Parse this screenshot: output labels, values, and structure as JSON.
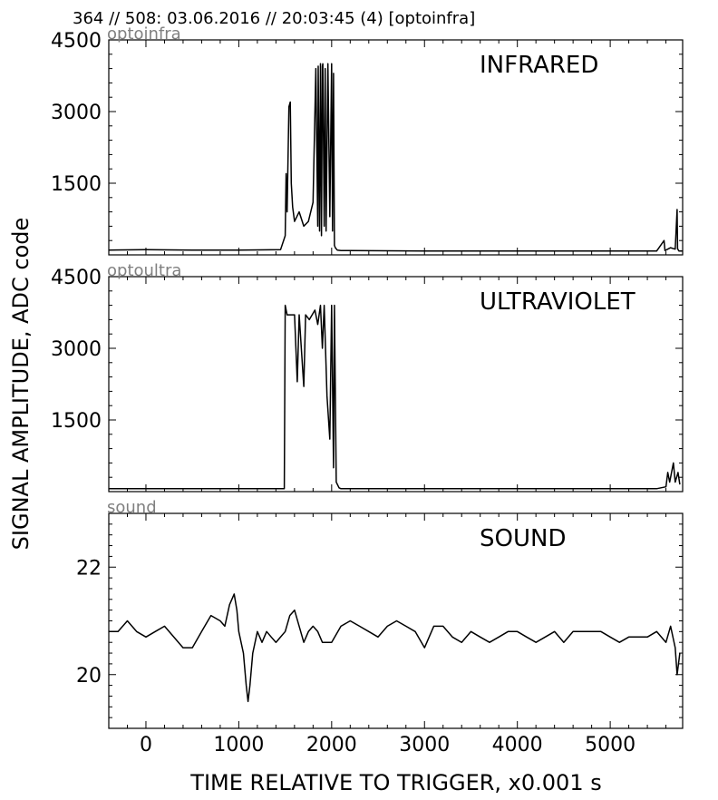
{
  "header": {
    "title": "364 // 508:   03.06.2016 // 20:03:45 (4)  [optoinfra]"
  },
  "figure": {
    "ylabel": "SIGNAL AMPLITUDE,  ADC code",
    "xlabel": "TIME RELATIVE TO TRIGGER,   x0.001 s",
    "x_ticks": [
      "0",
      "1000",
      "2000",
      "3000",
      "4000",
      "5000"
    ]
  },
  "chart_data": [
    {
      "type": "line",
      "title": "INFRARED",
      "subtitle": "optoinfra",
      "xlim": [
        -400,
        5780
      ],
      "ylim": [
        0,
        4500
      ],
      "y_ticks": [
        "1500",
        "3000",
        "4500"
      ],
      "series": [
        {
          "x": [
            -400,
            0,
            500,
            1000,
            1450,
            1500,
            1510,
            1520,
            1540,
            1555,
            1565,
            1580,
            1600,
            1650,
            1700,
            1750,
            1800,
            1830,
            1850,
            1855,
            1870,
            1880,
            1890,
            1900,
            1905,
            1920,
            1930,
            1940,
            1960,
            1980,
            2000,
            2010,
            2020,
            2030,
            2040,
            2060,
            2100,
            2200,
            3000,
            4000,
            5000,
            5500,
            5580,
            5590,
            5600,
            5650,
            5700,
            5720,
            5725,
            5740,
            5780
          ],
          "y": [
            100,
            110,
            100,
            100,
            110,
            400,
            1700,
            900,
            3100,
            3200,
            1500,
            1000,
            700,
            900,
            600,
            700,
            1100,
            3900,
            600,
            3950,
            500,
            4000,
            400,
            3950,
            4000,
            600,
            3900,
            500,
            4000,
            800,
            4000,
            500,
            3800,
            200,
            150,
            100,
            90,
            90,
            80,
            80,
            80,
            80,
            300,
            90,
            100,
            150,
            120,
            950,
            130,
            80,
            80
          ]
        }
      ]
    },
    {
      "type": "line",
      "title": "ULTRAVIOLET",
      "subtitle": "optoultra",
      "xlim": [
        -400,
        5780
      ],
      "ylim": [
        0,
        4500
      ],
      "y_ticks": [
        "1500",
        "3000",
        "4500"
      ],
      "series": [
        {
          "x": [
            -400,
            0,
            1000,
            1460,
            1490,
            1500,
            1520,
            1560,
            1600,
            1630,
            1650,
            1700,
            1720,
            1760,
            1790,
            1820,
            1850,
            1880,
            1900,
            1920,
            1950,
            1980,
            2000,
            2020,
            2030,
            2050,
            2080,
            2100,
            3000,
            4000,
            5000,
            5500,
            5600,
            5620,
            5640,
            5680,
            5700,
            5730,
            5750
          ],
          "y": [
            60,
            60,
            60,
            60,
            60,
            3900,
            3700,
            3700,
            3700,
            2300,
            3700,
            2200,
            3700,
            3600,
            3700,
            3800,
            3500,
            3900,
            3000,
            3900,
            2000,
            1100,
            3900,
            500,
            3900,
            200,
            80,
            60,
            60,
            60,
            60,
            60,
            100,
            400,
            200,
            600,
            200,
            400,
            150
          ]
        }
      ]
    },
    {
      "type": "line",
      "title": "SOUND",
      "subtitle": "sound",
      "xlim": [
        -400,
        5780
      ],
      "ylim": [
        19,
        23
      ],
      "y_ticks": [
        "20",
        "22"
      ],
      "series": [
        {
          "x": [
            -400,
            -300,
            -200,
            -100,
            0,
            100,
            200,
            300,
            400,
            500,
            600,
            700,
            800,
            850,
            900,
            950,
            980,
            1000,
            1050,
            1080,
            1100,
            1120,
            1150,
            1200,
            1250,
            1300,
            1350,
            1400,
            1450,
            1500,
            1550,
            1600,
            1650,
            1700,
            1750,
            1800,
            1850,
            1900,
            2000,
            2100,
            2200,
            2300,
            2400,
            2500,
            2600,
            2700,
            2800,
            2900,
            3000,
            3100,
            3200,
            3300,
            3400,
            3500,
            3600,
            3700,
            3800,
            3900,
            4000,
            4100,
            4200,
            4300,
            4400,
            4500,
            4600,
            4700,
            4800,
            4900,
            5000,
            5100,
            5200,
            5300,
            5400,
            5500,
            5600,
            5650,
            5700,
            5720,
            5750
          ],
          "y": [
            20.8,
            20.8,
            21.0,
            20.8,
            20.7,
            20.8,
            20.9,
            20.7,
            20.5,
            20.5,
            20.8,
            21.1,
            21.0,
            20.9,
            21.3,
            21.5,
            21.2,
            20.8,
            20.4,
            19.8,
            19.5,
            19.8,
            20.4,
            20.8,
            20.6,
            20.8,
            20.7,
            20.6,
            20.7,
            20.8,
            21.1,
            21.2,
            20.9,
            20.6,
            20.8,
            20.9,
            20.8,
            20.6,
            20.6,
            20.9,
            21.0,
            20.9,
            20.8,
            20.7,
            20.9,
            21.0,
            20.9,
            20.8,
            20.5,
            20.9,
            20.9,
            20.7,
            20.6,
            20.8,
            20.7,
            20.6,
            20.7,
            20.8,
            20.8,
            20.7,
            20.6,
            20.7,
            20.8,
            20.6,
            20.8,
            20.8,
            20.8,
            20.8,
            20.7,
            20.6,
            20.7,
            20.7,
            20.7,
            20.8,
            20.6,
            20.9,
            20.5,
            20.0,
            20.4
          ]
        }
      ]
    }
  ]
}
